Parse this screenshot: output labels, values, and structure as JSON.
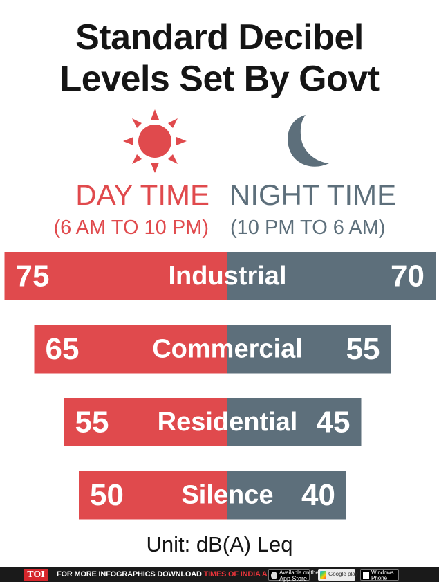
{
  "title": {
    "line1": "Standard Decibel",
    "line2": "Levels Set By Govt"
  },
  "icons": {
    "day": "sun-icon",
    "night": "moon-icon"
  },
  "legend": {
    "day_label": "DAY TIME",
    "day_range": "(6 AM TO 10 PM)",
    "night_label": "NIGHT TIME",
    "night_range": "(10 PM TO 6 AM)"
  },
  "colors": {
    "day": "#e04a4d",
    "night": "#5d6f7b",
    "text": "#151515"
  },
  "chart_data": {
    "type": "bar",
    "categories": [
      "Industrial",
      "Commercial",
      "Residential",
      "Silence"
    ],
    "series": [
      {
        "name": "DAY TIME",
        "values": [
          75,
          65,
          55,
          50
        ]
      },
      {
        "name": "NIGHT TIME",
        "values": [
          70,
          55,
          45,
          40
        ]
      }
    ],
    "unit": "Unit: dB(A) Leq"
  },
  "footer": {
    "logo": "TOI",
    "text_prefix": "FOR MORE  INFOGRAPHICS DOWNLOAD",
    "text_brand": "TIMES OF INDIA APP",
    "badges": [
      {
        "line1": "Available on the",
        "line2": "App Store"
      },
      {
        "line1": "",
        "line2": "Google play"
      },
      {
        "line1": "Windows",
        "line2": "Phone"
      }
    ]
  }
}
